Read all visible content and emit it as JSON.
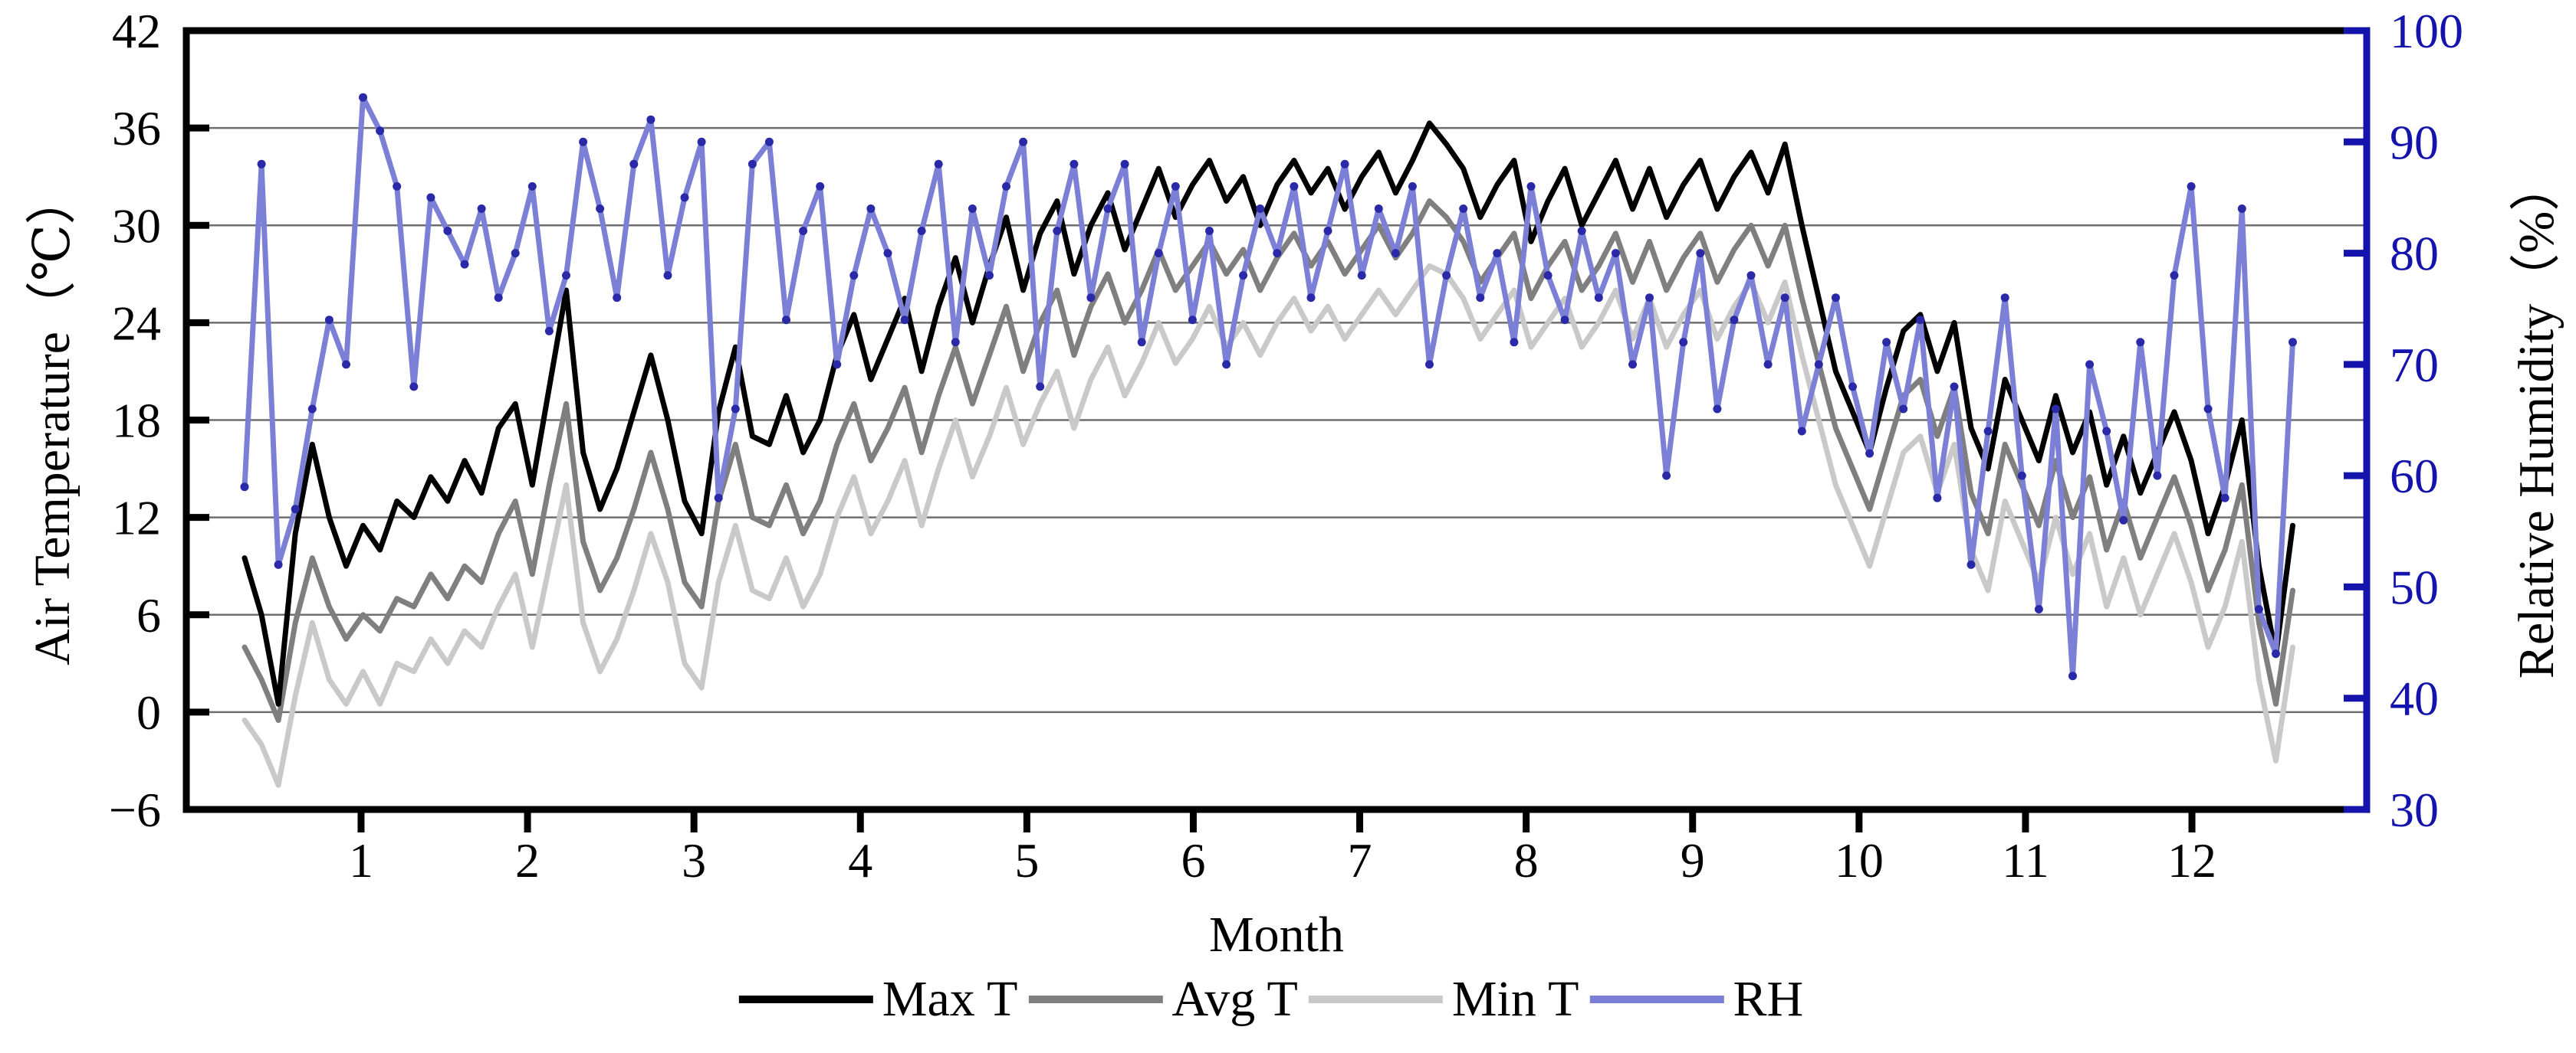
{
  "chart_data": {
    "type": "line",
    "xlabel": "Month",
    "x_ticks": [
      1,
      2,
      3,
      4,
      5,
      6,
      7,
      8,
      9,
      10,
      11,
      12
    ],
    "xlim": [
      -0.05,
      13.05
    ],
    "x_start": 0.3,
    "x_step": 0.1017,
    "y_left": {
      "label": "Air Temperature（℃）",
      "lim": [
        -6,
        42
      ],
      "ticks": [
        42,
        36,
        30,
        24,
        18,
        12,
        6,
        0,
        -6
      ],
      "color": "#000000"
    },
    "y_right": {
      "label": "Relative Humidity（%）",
      "lim": [
        30,
        100
      ],
      "ticks": [
        100,
        90,
        80,
        70,
        60,
        50,
        40,
        30
      ],
      "color": "#1414ad"
    },
    "grid": {
      "show": true,
      "color": "#6e6e6e",
      "at_left_ticks": [
        36,
        30,
        24,
        18,
        12,
        6,
        0
      ]
    },
    "legend_position": "bottom",
    "series": [
      {
        "name": "Max T",
        "axis": "left",
        "color": "#000000",
        "values": [
          9.5,
          6,
          0.5,
          11,
          16.5,
          12,
          9,
          11.5,
          10,
          13,
          12,
          14.5,
          13,
          15.5,
          13.5,
          17.5,
          19,
          14,
          20,
          26,
          16,
          12.5,
          15,
          18.5,
          22,
          18,
          13,
          11,
          18.5,
          22.5,
          17,
          16.5,
          19.5,
          16,
          18,
          22,
          24.5,
          20.5,
          23,
          25.5,
          21,
          25,
          28,
          24,
          27.5,
          30.5,
          26,
          29.5,
          31.5,
          27,
          30,
          32,
          28.5,
          31,
          33.5,
          30.5,
          32.5,
          34,
          31.5,
          33,
          30,
          32.5,
          34,
          32,
          33.5,
          31,
          33,
          34.5,
          32,
          34,
          36.3,
          35,
          33.5,
          30.5,
          32.5,
          34,
          29,
          31.5,
          33.5,
          30,
          32,
          34,
          31,
          33.5,
          30.5,
          32.5,
          34,
          31,
          33,
          34.5,
          32,
          35,
          30,
          25.5,
          21,
          18.5,
          16,
          20,
          23.5,
          24.5,
          21,
          24,
          17.5,
          15,
          20.5,
          18,
          15.5,
          19.5,
          16,
          18.5,
          14,
          17,
          13.5,
          16,
          18.5,
          15.5,
          11,
          14,
          18,
          9,
          3.5,
          11.5
        ]
      },
      {
        "name": "Avg T",
        "axis": "left",
        "color": "#7f7f7f",
        "values": [
          4,
          2,
          -0.5,
          5.5,
          9.5,
          6.5,
          4.5,
          6,
          5,
          7,
          6.5,
          8.5,
          7,
          9,
          8,
          11,
          13,
          8.5,
          14,
          19,
          10.5,
          7.5,
          9.5,
          12.5,
          16,
          12.5,
          8,
          6.5,
          13,
          16.5,
          12,
          11.5,
          14,
          11,
          13,
          16.5,
          19,
          15.5,
          17.5,
          20,
          16,
          19.5,
          22.5,
          19,
          22,
          25,
          21,
          24,
          26,
          22,
          25,
          27,
          24,
          26,
          28.5,
          26,
          27.5,
          29,
          27,
          28.5,
          26,
          28,
          29.5,
          27.5,
          29,
          27,
          28.5,
          30,
          28,
          29.5,
          31.5,
          30.5,
          29,
          26.5,
          28,
          29.5,
          25.5,
          27.5,
          29,
          26,
          27.5,
          29.5,
          26.5,
          29,
          26,
          28,
          29.5,
          26.5,
          28.5,
          30,
          27.5,
          30,
          25.5,
          21.5,
          17.5,
          15,
          12.5,
          16,
          19.5,
          20.5,
          17,
          20,
          13.5,
          11,
          16.5,
          14,
          11.5,
          15.5,
          12,
          14.5,
          10,
          13,
          9.5,
          12,
          14.5,
          11.5,
          7.5,
          10,
          14,
          5.5,
          0.5,
          7.5
        ]
      },
      {
        "name": "Min T",
        "axis": "left",
        "color": "#c9c9c9",
        "values": [
          -0.5,
          -2,
          -4.5,
          1,
          5.5,
          2,
          0.5,
          2.5,
          0.5,
          3,
          2.5,
          4.5,
          3,
          5,
          4,
          6.5,
          8.5,
          4,
          9,
          14,
          5.5,
          2.5,
          4.5,
          7.5,
          11,
          8,
          3,
          1.5,
          8,
          11.5,
          7.5,
          7,
          9.5,
          6.5,
          8.5,
          12,
          14.5,
          11,
          13,
          15.5,
          11.5,
          15,
          18,
          14.5,
          17,
          20,
          16.5,
          19,
          21,
          17.5,
          20.5,
          22.5,
          19.5,
          21.5,
          24,
          21.5,
          23,
          25,
          22.5,
          24,
          22,
          24,
          25.5,
          23.5,
          25,
          23,
          24.5,
          26,
          24.5,
          26,
          27.5,
          27,
          25.5,
          23,
          24.5,
          26,
          22.5,
          24,
          25.5,
          22.5,
          24,
          26,
          23,
          25.5,
          22.5,
          24.5,
          26,
          23,
          25,
          26.5,
          24,
          26.5,
          22,
          18,
          14,
          11.5,
          9,
          12.5,
          16,
          17,
          13.5,
          16.5,
          10,
          7.5,
          13,
          10.5,
          8,
          12,
          8.5,
          11,
          6.5,
          9.5,
          6,
          8.5,
          11,
          8,
          4,
          6.5,
          10.5,
          2,
          -3,
          4
        ]
      },
      {
        "name": "RH",
        "axis": "right",
        "color": "#7b7fd6",
        "marker_color": "#2a2aa8",
        "values": [
          59,
          88,
          52,
          57,
          66,
          74,
          70,
          94,
          91,
          86,
          68,
          85,
          82,
          79,
          84,
          76,
          80,
          86,
          73,
          78,
          90,
          84,
          76,
          88,
          92,
          78,
          85,
          90,
          58,
          66,
          88,
          90,
          74,
          82,
          86,
          70,
          78,
          84,
          80,
          74,
          82,
          88,
          72,
          84,
          78,
          86,
          90,
          68,
          82,
          88,
          76,
          84,
          88,
          72,
          80,
          86,
          74,
          82,
          70,
          78,
          84,
          80,
          86,
          76,
          82,
          88,
          78,
          84,
          80,
          86,
          70,
          78,
          84,
          76,
          80,
          72,
          86,
          78,
          74,
          82,
          76,
          80,
          70,
          76,
          60,
          72,
          80,
          66,
          74,
          78,
          70,
          76,
          64,
          70,
          76,
          68,
          62,
          72,
          66,
          74,
          58,
          68,
          52,
          64,
          76,
          60,
          48,
          66,
          42,
          70,
          64,
          56,
          72,
          60,
          78,
          86,
          66,
          58,
          84,
          48,
          44,
          72
        ]
      }
    ]
  }
}
